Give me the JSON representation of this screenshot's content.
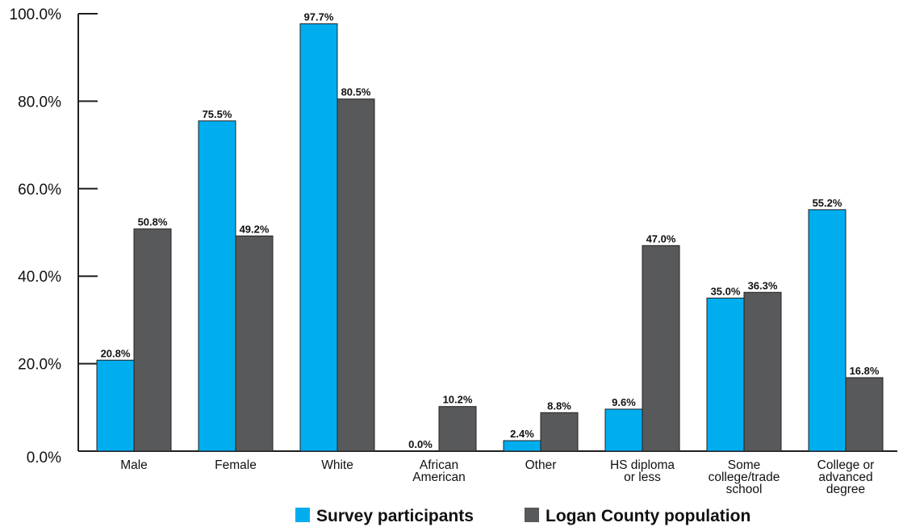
{
  "chart_data": {
    "type": "bar",
    "title": "",
    "xlabel": "",
    "ylabel": "",
    "ylim": [
      0,
      100
    ],
    "yticks": [
      "0.0%",
      "20.0%",
      "40.0%",
      "60.0%",
      "80.0%",
      "100.0%"
    ],
    "grid": false,
    "legend_position": "bottom",
    "categories": [
      [
        "Male"
      ],
      [
        "Female"
      ],
      [
        "White"
      ],
      [
        "African",
        "American"
      ],
      [
        "Other"
      ],
      [
        "HS diploma",
        "or less"
      ],
      [
        "Some",
        "college/trade",
        "school"
      ],
      [
        "College or",
        "advanced",
        "degree"
      ]
    ],
    "series": [
      {
        "name": "Survey participants",
        "color": "#00aeef",
        "values": [
          20.8,
          75.5,
          97.7,
          0.0,
          2.4,
          9.6,
          35.0,
          55.2
        ],
        "labels": [
          "20.8%",
          "75.5%",
          "97.7%",
          "0.0%",
          "2.4%",
          "9.6%",
          "35.0%",
          "55.2%"
        ]
      },
      {
        "name": "Logan County population",
        "color": "#58595b",
        "values": [
          50.8,
          49.2,
          80.5,
          10.2,
          8.8,
          47.0,
          36.3,
          16.8
        ],
        "labels": [
          "50.8%",
          "49.2%",
          "80.5%",
          "10.2%",
          "8.8%",
          "47.0%",
          "36.3%",
          "16.8%"
        ]
      }
    ]
  }
}
